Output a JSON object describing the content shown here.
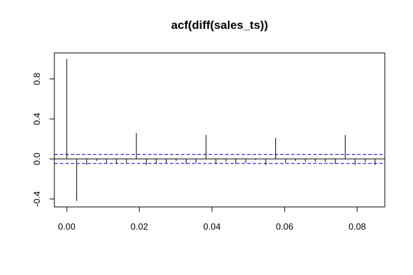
{
  "chart_data": {
    "type": "bar",
    "title": "acf(diff(sales_ts))",
    "xlabel": "",
    "ylabel": "",
    "xlim": [
      -0.0034,
      0.0876
    ],
    "ylim": [
      -0.48,
      1.06
    ],
    "x_ticks": [
      0.0,
      0.02,
      0.04,
      0.06,
      0.08
    ],
    "x_tick_labels": [
      "0.00",
      "0.02",
      "0.04",
      "0.06",
      "0.08"
    ],
    "y_ticks": [
      -0.4,
      0.0,
      0.4,
      0.8
    ],
    "y_tick_labels": [
      "-0.4",
      "0.0",
      "0.4",
      "0.8"
    ],
    "confidence_bounds": {
      "upper": 0.045,
      "lower": -0.045,
      "color": "#0000cc",
      "style": "dashed"
    },
    "grid": false,
    "series": [
      {
        "x": [
          0.0,
          0.00274,
          0.00548,
          0.00822,
          0.01096,
          0.0137,
          0.01644,
          0.01918,
          0.02192,
          0.02466,
          0.0274,
          0.03014,
          0.03288,
          0.03562,
          0.03836,
          0.0411,
          0.04384,
          0.04658,
          0.04932,
          0.05206,
          0.0548,
          0.05754,
          0.06027,
          0.06301,
          0.06575,
          0.06849,
          0.07123,
          0.07397,
          0.07671,
          0.07945,
          0.08219,
          0.08493
        ],
        "y": [
          1.0,
          -0.42,
          -0.06,
          -0.02,
          -0.04,
          -0.05,
          -0.04,
          0.26,
          -0.06,
          -0.05,
          -0.04,
          -0.02,
          -0.05,
          -0.04,
          0.24,
          -0.05,
          -0.03,
          -0.05,
          -0.04,
          -0.01,
          -0.06,
          0.21,
          -0.04,
          -0.02,
          -0.03,
          -0.03,
          -0.03,
          -0.05,
          0.24,
          -0.06,
          -0.03,
          -0.06
        ]
      }
    ]
  }
}
